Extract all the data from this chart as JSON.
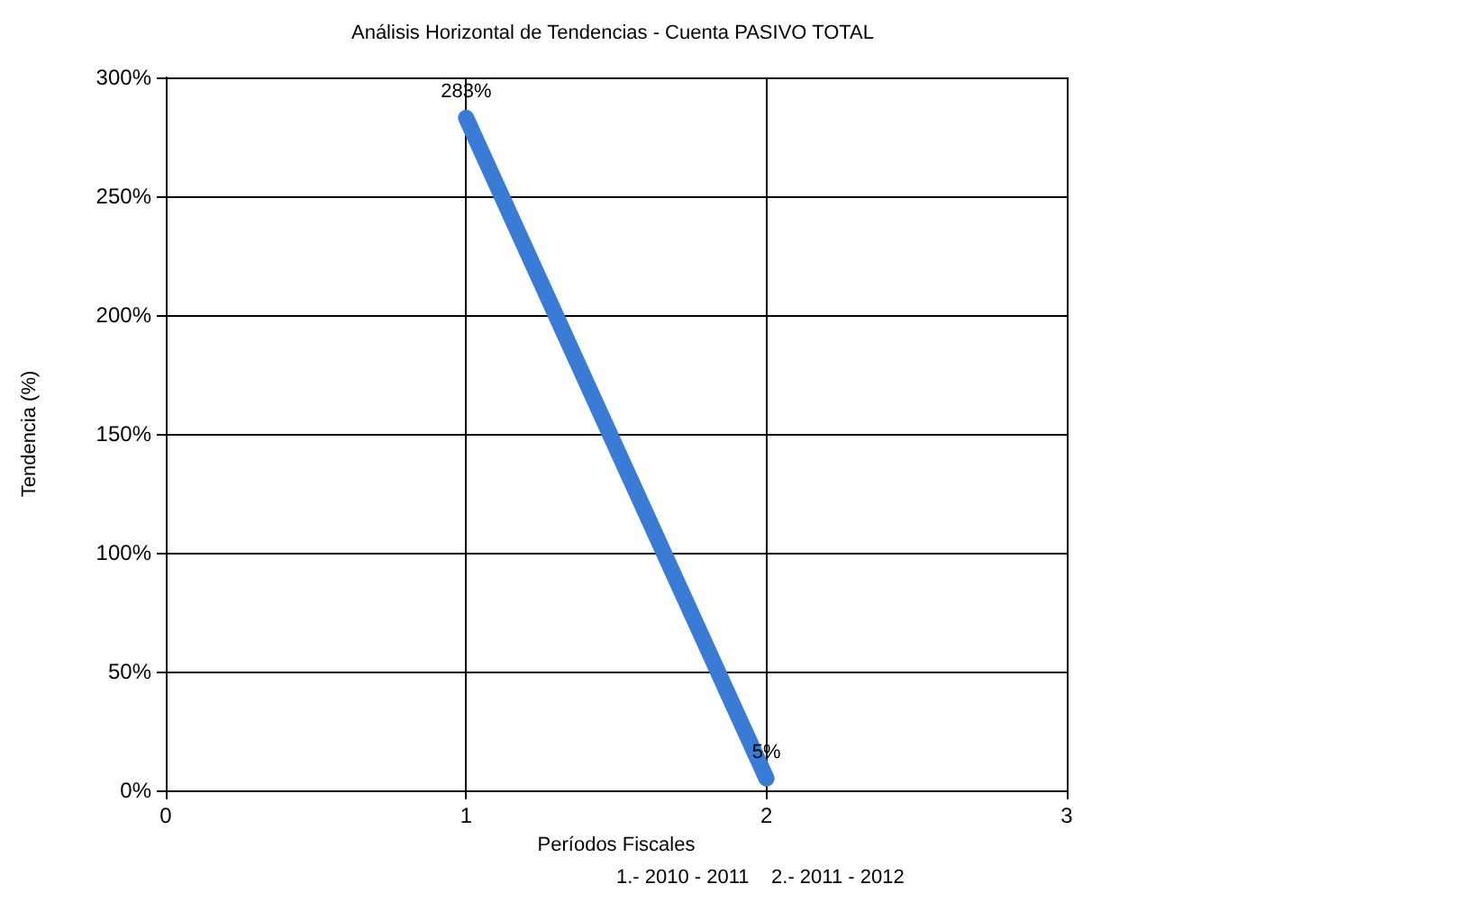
{
  "chart_data": {
    "type": "line",
    "title": "Análisis Horizontal de Tendencias - Cuenta PASIVO TOTAL",
    "xlabel": "Períodos Fiscales",
    "ylabel": "Tendencia (%)",
    "annotations": [
      "1.- 2010 - 2011    2.- 2011 - 2012"
    ],
    "x": [
      1,
      2
    ],
    "series": [
      {
        "color": "#3a7bd5",
        "values": [
          283,
          5
        ],
        "value_labels": [
          "283%",
          "5%"
        ]
      }
    ],
    "xlim": [
      0,
      3
    ],
    "xticks": [
      0,
      1,
      2,
      3
    ],
    "ylim": [
      0,
      300
    ],
    "yticks": [
      {
        "value": 0,
        "label": "0%"
      },
      {
        "value": 50,
        "label": "50%"
      },
      {
        "value": 100,
        "label": "100%"
      },
      {
        "value": 150,
        "label": "150%"
      },
      {
        "value": 200,
        "label": "200%"
      },
      {
        "value": 250,
        "label": "250%"
      },
      {
        "value": 300,
        "label": "300%"
      }
    ],
    "grid": true,
    "marker": "none",
    "line_style": "solid"
  }
}
